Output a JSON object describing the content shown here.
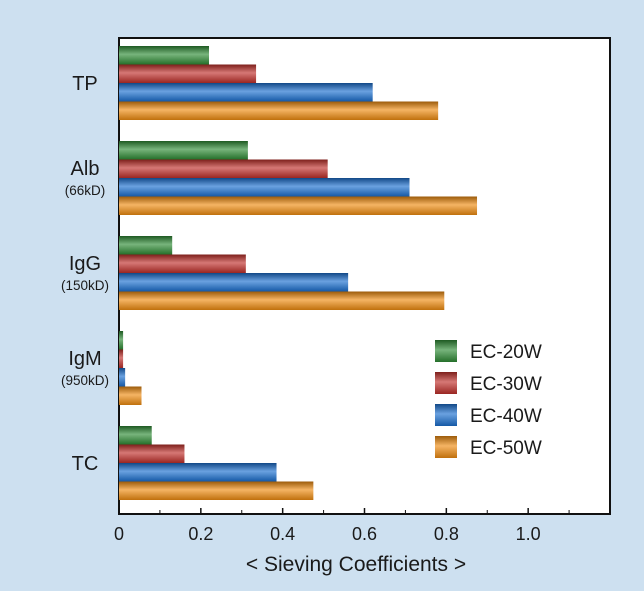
{
  "chart_data": {
    "type": "bar",
    "orientation": "horizontal",
    "title": "",
    "xlabel": "< Sieving Coefficients >",
    "ylabel": "",
    "xlim": [
      0,
      1.2
    ],
    "x_ticks": [
      0,
      0.2,
      0.4,
      0.6,
      0.8,
      1.0
    ],
    "x_tick_labels": [
      "0",
      "0.2",
      "0.4",
      "0.6",
      "0.8",
      "1.0"
    ],
    "grid": false,
    "legend_position": "lower-right",
    "categories": [
      {
        "label": "TP",
        "sublabel": ""
      },
      {
        "label": "Alb",
        "sublabel": "(66kD)"
      },
      {
        "label": "IgG",
        "sublabel": "(150kD)"
      },
      {
        "label": "IgM",
        "sublabel": "(950kD)"
      },
      {
        "label": "TC",
        "sublabel": ""
      }
    ],
    "series": [
      {
        "name": "EC-20W",
        "color": "#2e8b35",
        "values": [
          0.22,
          0.315,
          0.13,
          0.01,
          0.08
        ]
      },
      {
        "name": "EC-30W",
        "color": "#c0302a",
        "values": [
          0.335,
          0.51,
          0.31,
          0.01,
          0.16
        ]
      },
      {
        "name": "EC-40W",
        "color": "#1a6fd0",
        "values": [
          0.62,
          0.71,
          0.56,
          0.015,
          0.385
        ]
      },
      {
        "name": "EC-50W",
        "color": "#f08c10",
        "values": [
          0.78,
          0.875,
          0.795,
          0.055,
          0.475
        ]
      }
    ]
  },
  "colors": {
    "background": "#cde0f0",
    "plot_background": "#ffffff"
  }
}
